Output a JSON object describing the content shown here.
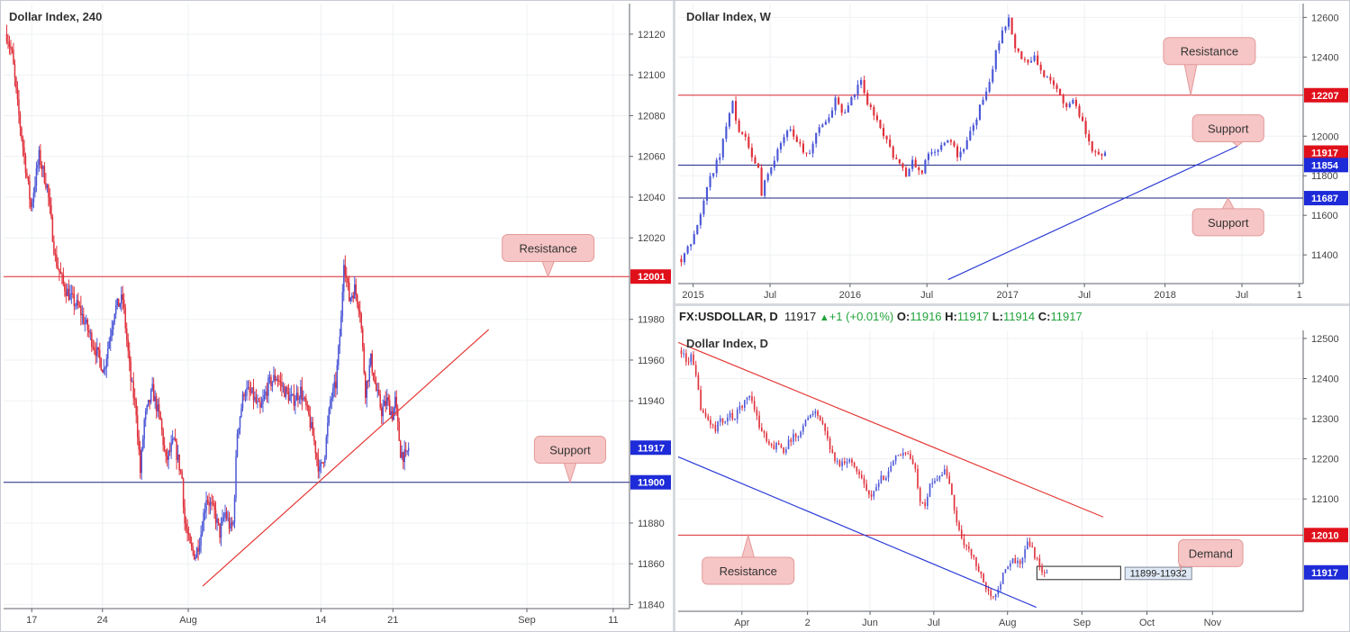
{
  "colors": {
    "bull": "#4b57d6",
    "bear": "#e0303b",
    "resistance": "#d9262e",
    "support": "#1a237e",
    "trend_red": "#e53935",
    "trend_blue": "#2d3dd8",
    "callout_bg": "#f6c5c5",
    "callout_border": "#e39a9a",
    "price_red_tag": "#e0101b",
    "price_blue_tag": "#1e2bd8"
  },
  "chart_data": [
    {
      "id": "h4",
      "type": "candlestick",
      "title": "Dollar Index, 240",
      "ylim": [
        11838,
        12135
      ],
      "yticks": [
        12120,
        12100,
        12080,
        12060,
        12040,
        12020,
        11980,
        11960,
        11940,
        11880,
        11860,
        11840
      ],
      "ytick_labels": [
        "12120",
        "12100",
        "12080",
        "12060",
        "12040",
        "12020",
        "11980",
        "11960",
        "11940",
        "11880",
        "11860",
        "11840"
      ],
      "xticks": [
        {
          "label": "17",
          "frac": 0.045
        },
        {
          "label": "24",
          "frac": 0.158
        },
        {
          "label": "Aug",
          "frac": 0.295
        },
        {
          "label": "14",
          "frac": 0.507
        },
        {
          "label": "21",
          "frac": 0.622
        },
        {
          "label": "Sep",
          "frac": 0.836
        },
        {
          "label": "11",
          "frac": 0.974
        }
      ],
      "x_start_frac": 0.005,
      "x_end_frac": 0.647,
      "last_price": 11917,
      "price_tags": [
        {
          "value": 12001,
          "label": "12001",
          "kind": "red"
        },
        {
          "value": 11917,
          "label": "11917",
          "kind": "blue"
        },
        {
          "value": 11900,
          "label": "11900",
          "kind": "blue"
        }
      ],
      "levels": [
        {
          "value": 12001,
          "kind": "resistance"
        },
        {
          "value": 11900,
          "kind": "support"
        }
      ],
      "trendlines": [
        {
          "x1": 0.318,
          "y1": 11849,
          "x2": 0.775,
          "y2": 11975,
          "kind": "trend_red"
        }
      ],
      "callouts": [
        {
          "text": "Resistance",
          "x": 0.87,
          "y": 12015,
          "tail_x": 0.87,
          "tail_y": 12001,
          "dir": "down"
        },
        {
          "text": "Support",
          "x": 0.905,
          "y": 11916,
          "tail_x": 0.905,
          "tail_y": 11900,
          "dir": "down"
        }
      ],
      "anchors": [
        [
          0,
          12120
        ],
        [
          4,
          12110
        ],
        [
          8,
          12085
        ],
        [
          14,
          12055
        ],
        [
          18,
          12035
        ],
        [
          24,
          12060
        ],
        [
          30,
          12045
        ],
        [
          36,
          12010
        ],
        [
          42,
          11997
        ],
        [
          48,
          11990
        ],
        [
          54,
          11985
        ],
        [
          60,
          11975
        ],
        [
          66,
          11965
        ],
        [
          72,
          11955
        ],
        [
          80,
          11985
        ],
        [
          86,
          11990
        ],
        [
          92,
          11950
        ],
        [
          96,
          11935
        ],
        [
          99,
          11905
        ],
        [
          102,
          11930
        ],
        [
          108,
          11945
        ],
        [
          114,
          11930
        ],
        [
          118,
          11910
        ],
        [
          124,
          11920
        ],
        [
          130,
          11902
        ],
        [
          132,
          11880
        ],
        [
          136,
          11868
        ],
        [
          140,
          11864
        ],
        [
          144,
          11875
        ],
        [
          148,
          11893
        ],
        [
          154,
          11885
        ],
        [
          158,
          11875
        ],
        [
          162,
          11885
        ],
        [
          166,
          11877
        ],
        [
          168,
          11880
        ],
        [
          171,
          11925
        ],
        [
          176,
          11945
        ],
        [
          182,
          11943
        ],
        [
          188,
          11935
        ],
        [
          194,
          11948
        ],
        [
          200,
          11952
        ],
        [
          206,
          11945
        ],
        [
          212,
          11940
        ],
        [
          218,
          11945
        ],
        [
          224,
          11932
        ],
        [
          228,
          11920
        ],
        [
          232,
          11905
        ],
        [
          236,
          11915
        ],
        [
          240,
          11940
        ],
        [
          244,
          11948
        ],
        [
          248,
          11980
        ],
        [
          250,
          12010
        ],
        [
          254,
          11990
        ],
        [
          258,
          11995
        ],
        [
          262,
          11985
        ],
        [
          266,
          11945
        ],
        [
          270,
          11960
        ],
        [
          274,
          11945
        ],
        [
          278,
          11935
        ],
        [
          282,
          11940
        ],
        [
          286,
          11933
        ],
        [
          288,
          11940
        ],
        [
          292,
          11915
        ],
        [
          296,
          11912
        ],
        [
          298,
          11917
        ]
      ]
    },
    {
      "id": "weekly",
      "type": "candlestick",
      "title": "Dollar Index, W",
      "ylim": [
        11255,
        12670
      ],
      "yticks": [
        12600,
        12400,
        12000,
        11800,
        11600,
        11400
      ],
      "ytick_labels": [
        "12600",
        "12400",
        "12000",
        "11800",
        "11600",
        "11400"
      ],
      "xticks": [
        {
          "label": "2015",
          "frac": 0.024
        },
        {
          "label": "Jul",
          "frac": 0.147
        },
        {
          "label": "2016",
          "frac": 0.275
        },
        {
          "label": "Jul",
          "frac": 0.398
        },
        {
          "label": "2017",
          "frac": 0.527
        },
        {
          "label": "Jul",
          "frac": 0.65
        },
        {
          "label": "2018",
          "frac": 0.779
        },
        {
          "label": "Jul",
          "frac": 0.902
        },
        {
          "label": "1",
          "frac": 0.994
        }
      ],
      "x_start_frac": 0.005,
      "x_end_frac": 0.683,
      "last_price": 11917,
      "price_tags": [
        {
          "value": 12207,
          "label": "12207",
          "kind": "red"
        },
        {
          "value": 11917,
          "label": "11917",
          "kind": "red"
        },
        {
          "value": 11854,
          "label": "11854",
          "kind": "blue"
        },
        {
          "value": 11687,
          "label": "11687",
          "kind": "blue"
        }
      ],
      "levels": [
        {
          "value": 12207,
          "kind": "resistance"
        },
        {
          "value": 11854,
          "kind": "support"
        },
        {
          "value": 11687,
          "kind": "support"
        }
      ],
      "trendlines": [
        {
          "x1": 0.432,
          "y1": 11275,
          "x2": 0.895,
          "y2": 11950,
          "kind": "trend_blue"
        }
      ],
      "callouts": [
        {
          "text": "Resistance",
          "x": 0.85,
          "y": 12430,
          "tail_x": 0.82,
          "tail_y": 12207,
          "dir": "down"
        },
        {
          "text": "Support",
          "x": 0.88,
          "y": 12040,
          "tail_x": 0.895,
          "tail_y": 11950,
          "dir": "down"
        },
        {
          "text": "Support",
          "x": 0.88,
          "y": 11565,
          "tail_x": 0.88,
          "tail_y": 11687,
          "dir": "up"
        }
      ],
      "anchors": [
        [
          0,
          11380
        ],
        [
          3,
          11450
        ],
        [
          6,
          11620
        ],
        [
          9,
          11790
        ],
        [
          12,
          11900
        ],
        [
          14,
          12060
        ],
        [
          16,
          12170
        ],
        [
          18,
          12020
        ],
        [
          20,
          11980
        ],
        [
          22,
          11890
        ],
        [
          24,
          11830
        ],
        [
          25,
          11690
        ],
        [
          26,
          11760
        ],
        [
          28,
          11850
        ],
        [
          30,
          11920
        ],
        [
          32,
          11990
        ],
        [
          34,
          12050
        ],
        [
          36,
          11980
        ],
        [
          38,
          11930
        ],
        [
          40,
          11900
        ],
        [
          42,
          12010
        ],
        [
          44,
          12070
        ],
        [
          46,
          12100
        ],
        [
          48,
          12190
        ],
        [
          50,
          12110
        ],
        [
          52,
          12150
        ],
        [
          54,
          12220
        ],
        [
          56,
          12270
        ],
        [
          58,
          12160
        ],
        [
          60,
          12110
        ],
        [
          62,
          12050
        ],
        [
          64,
          11980
        ],
        [
          66,
          11900
        ],
        [
          68,
          11850
        ],
        [
          70,
          11810
        ],
        [
          72,
          11870
        ],
        [
          74,
          11820
        ],
        [
          75,
          11820
        ],
        [
          76,
          11890
        ],
        [
          78,
          11920
        ],
        [
          80,
          11930
        ],
        [
          82,
          11950
        ],
        [
          84,
          11980
        ],
        [
          86,
          11900
        ],
        [
          88,
          11950
        ],
        [
          90,
          12010
        ],
        [
          92,
          12090
        ],
        [
          94,
          12200
        ],
        [
          96,
          12270
        ],
        [
          98,
          12420
        ],
        [
          100,
          12530
        ],
        [
          102,
          12590
        ],
        [
          104,
          12440
        ],
        [
          106,
          12400
        ],
        [
          108,
          12360
        ],
        [
          110,
          12410
        ],
        [
          112,
          12320
        ],
        [
          114,
          12290
        ],
        [
          116,
          12250
        ],
        [
          118,
          12200
        ],
        [
          120,
          12150
        ],
        [
          122,
          12180
        ],
        [
          124,
          12110
        ],
        [
          126,
          12020
        ],
        [
          128,
          11920
        ],
        [
          130,
          11910
        ],
        [
          132,
          11917
        ]
      ]
    },
    {
      "id": "daily",
      "type": "candlestick",
      "title": "Dollar Index, D",
      "symbol_line": {
        "symbol": "FX:USDOLLAR, D",
        "last": "11917",
        "change": "+1 (+0.01%)",
        "o_label": "O:",
        "o": "11916",
        "h_label": "H:",
        "h": "11917",
        "l_label": "L:",
        "l": "11914",
        "c_label": "C:",
        "c": "11917"
      },
      "ylim": [
        11820,
        12520
      ],
      "yticks": [
        12500,
        12400,
        12300,
        12200,
        12100
      ],
      "ytick_labels": [
        "12500",
        "12400",
        "12300",
        "12200",
        "12100"
      ],
      "xticks": [
        {
          "label": "Apr",
          "frac": 0.102
        },
        {
          "label": "2",
          "frac": 0.207
        },
        {
          "label": "Jun",
          "frac": 0.307
        },
        {
          "label": "Jul",
          "frac": 0.409
        },
        {
          "label": "Aug",
          "frac": 0.527
        },
        {
          "label": "Sep",
          "frac": 0.646
        },
        {
          "label": "Oct",
          "frac": 0.75
        },
        {
          "label": "Nov",
          "frac": 0.855
        }
      ],
      "x_start_frac": 0.005,
      "x_end_frac": 0.59,
      "last_price": 11917,
      "price_tags": [
        {
          "value": 12010,
          "label": "12010",
          "kind": "red"
        },
        {
          "value": 11917,
          "label": "11917",
          "kind": "blue"
        }
      ],
      "levels": [
        {
          "value": 12010,
          "kind": "resistance"
        }
      ],
      "trendlines": [
        {
          "x1": 0.0,
          "y1": 12490,
          "x2": 0.68,
          "y2": 12055,
          "kind": "trend_red"
        },
        {
          "x1": 0.0,
          "y1": 12205,
          "x2": 0.573,
          "y2": 11830,
          "kind": "trend_blue"
        }
      ],
      "zones": [
        {
          "x1": 0.574,
          "x2": 0.708,
          "y1": 11899,
          "y2": 11932,
          "label": "11899-11932",
          "label_x": 0.715
        }
      ],
      "callouts": [
        {
          "text": "Resistance",
          "x": 0.112,
          "y": 11921,
          "tail_x": 0.112,
          "tail_y": 12010,
          "dir": "up"
        },
        {
          "text": "Demand",
          "x": 0.852,
          "y": 11965,
          "tail_x": 0.805,
          "tail_y": 11920,
          "dir": "left-down"
        }
      ],
      "anchors": [
        [
          0,
          12470
        ],
        [
          2,
          12440
        ],
        [
          4,
          12455
        ],
        [
          6,
          12400
        ],
        [
          8,
          12330
        ],
        [
          10,
          12300
        ],
        [
          12,
          12290
        ],
        [
          14,
          12270
        ],
        [
          16,
          12300
        ],
        [
          18,
          12290
        ],
        [
          20,
          12310
        ],
        [
          22,
          12300
        ],
        [
          24,
          12330
        ],
        [
          26,
          12340
        ],
        [
          28,
          12360
        ],
        [
          30,
          12330
        ],
        [
          32,
          12280
        ],
        [
          34,
          12260
        ],
        [
          36,
          12230
        ],
        [
          38,
          12230
        ],
        [
          40,
          12240
        ],
        [
          42,
          12220
        ],
        [
          44,
          12240
        ],
        [
          46,
          12260
        ],
        [
          48,
          12250
        ],
        [
          50,
          12290
        ],
        [
          52,
          12300
        ],
        [
          54,
          12320
        ],
        [
          56,
          12310
        ],
        [
          58,
          12280
        ],
        [
          60,
          12250
        ],
        [
          62,
          12210
        ],
        [
          64,
          12190
        ],
        [
          66,
          12190
        ],
        [
          68,
          12200
        ],
        [
          70,
          12190
        ],
        [
          72,
          12170
        ],
        [
          74,
          12160
        ],
        [
          76,
          12120
        ],
        [
          78,
          12100
        ],
        [
          80,
          12130
        ],
        [
          82,
          12150
        ],
        [
          84,
          12160
        ],
        [
          86,
          12180
        ],
        [
          88,
          12200
        ],
        [
          90,
          12210
        ],
        [
          92,
          12220
        ],
        [
          94,
          12200
        ],
        [
          96,
          12170
        ],
        [
          98,
          12100
        ],
        [
          100,
          12090
        ],
        [
          102,
          12130
        ],
        [
          104,
          12150
        ],
        [
          106,
          12160
        ],
        [
          108,
          12170
        ],
        [
          110,
          12140
        ],
        [
          112,
          12070
        ],
        [
          114,
          12020
        ],
        [
          116,
          11990
        ],
        [
          118,
          11970
        ],
        [
          120,
          11950
        ],
        [
          122,
          11920
        ],
        [
          124,
          11890
        ],
        [
          126,
          11870
        ],
        [
          128,
          11860
        ],
        [
          130,
          11880
        ],
        [
          132,
          11910
        ],
        [
          134,
          11930
        ],
        [
          136,
          11945
        ],
        [
          138,
          11940
        ],
        [
          140,
          11950
        ],
        [
          142,
          11990
        ],
        [
          144,
          11975
        ],
        [
          146,
          11945
        ],
        [
          148,
          11918
        ],
        [
          150,
          11917
        ]
      ]
    }
  ]
}
